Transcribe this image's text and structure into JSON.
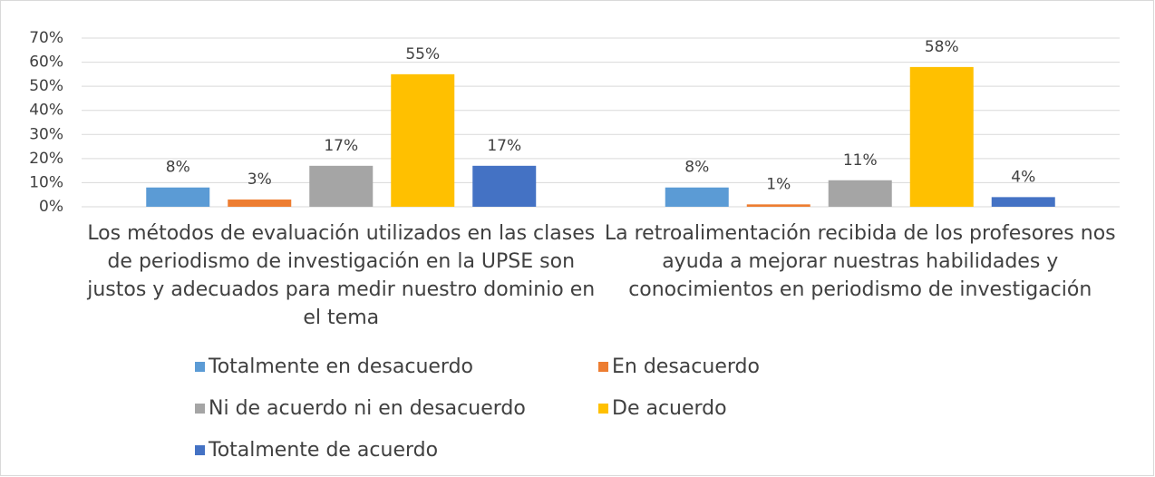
{
  "chart_data": {
    "type": "bar",
    "categories": [
      "Los métodos de evaluación utilizados en las clases de periodismo de investigación en la UPSE son justos y adecuados para medir nuestro dominio en el tema",
      "La retroalimentación recibida de los profesores nos ayuda a mejorar nuestras habilidades y conocimientos en periodismo de investigación"
    ],
    "series": [
      {
        "name": "Totalmente en desacuerdo",
        "color": "#5b9bd5",
        "values": [
          8,
          8
        ],
        "value_labels": [
          "8%",
          "8%"
        ]
      },
      {
        "name": "En desacuerdo",
        "color": "#ed7d31",
        "values": [
          3,
          1
        ],
        "value_labels": [
          "3%",
          "1%"
        ]
      },
      {
        "name": "Ni de acuerdo ni en desacuerdo",
        "color": "#a5a5a5",
        "values": [
          17,
          11
        ],
        "value_labels": [
          "17%",
          "11%"
        ]
      },
      {
        "name": "De acuerdo",
        "color": "#ffc000",
        "values": [
          55,
          58
        ],
        "value_labels": [
          "55%",
          "58%"
        ]
      },
      {
        "name": "Totalmente de acuerdo",
        "color": "#4472c4",
        "values": [
          17,
          4
        ],
        "value_labels": [
          "17%",
          "4%"
        ]
      }
    ],
    "ylim": [
      0,
      70
    ],
    "yticks": [
      {
        "value": 0,
        "label": "0%"
      },
      {
        "value": 10,
        "label": "10%"
      },
      {
        "value": 20,
        "label": "20%"
      },
      {
        "value": 30,
        "label": "30%"
      },
      {
        "value": 40,
        "label": "40%"
      },
      {
        "value": 50,
        "label": "50%"
      },
      {
        "value": 60,
        "label": "60%"
      },
      {
        "value": 70,
        "label": "70%"
      }
    ],
    "grid": true,
    "legend": "bottom"
  }
}
